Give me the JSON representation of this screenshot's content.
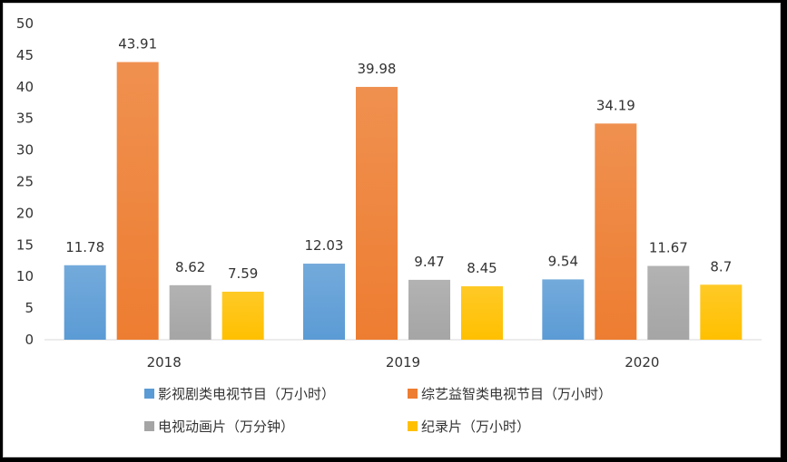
{
  "chart_data": {
    "type": "bar",
    "categories": [
      "2018",
      "2019",
      "2020"
    ],
    "series": [
      {
        "name": "影视剧类电视节目（万小时）",
        "values": [
          11.78,
          12.03,
          9.54
        ],
        "color": "#5b9bd5"
      },
      {
        "name": "综艺益智类电视节目（万小时）",
        "values": [
          43.91,
          39.98,
          34.19
        ],
        "color": "#ed7d31"
      },
      {
        "name": "电视动画片（万分钟）",
        "values": [
          8.62,
          9.47,
          11.67
        ],
        "color": "#a5a5a5"
      },
      {
        "name": "纪录片（万小时）",
        "values": [
          7.59,
          8.45,
          8.7
        ],
        "color": "#ffc000"
      }
    ],
    "value_labels": [
      [
        "11.78",
        "12.03",
        "9.54"
      ],
      [
        "43.91",
        "39.98",
        "34.19"
      ],
      [
        "8.62",
        "9.47",
        "11.67"
      ],
      [
        "7.59",
        "8.45",
        "8.7"
      ]
    ],
    "ylim": [
      0,
      50
    ],
    "yticks": [
      "0",
      "5",
      "10",
      "15",
      "20",
      "25",
      "30",
      "35",
      "40",
      "45",
      "50"
    ],
    "grid": false,
    "legend_position": "bottom"
  }
}
